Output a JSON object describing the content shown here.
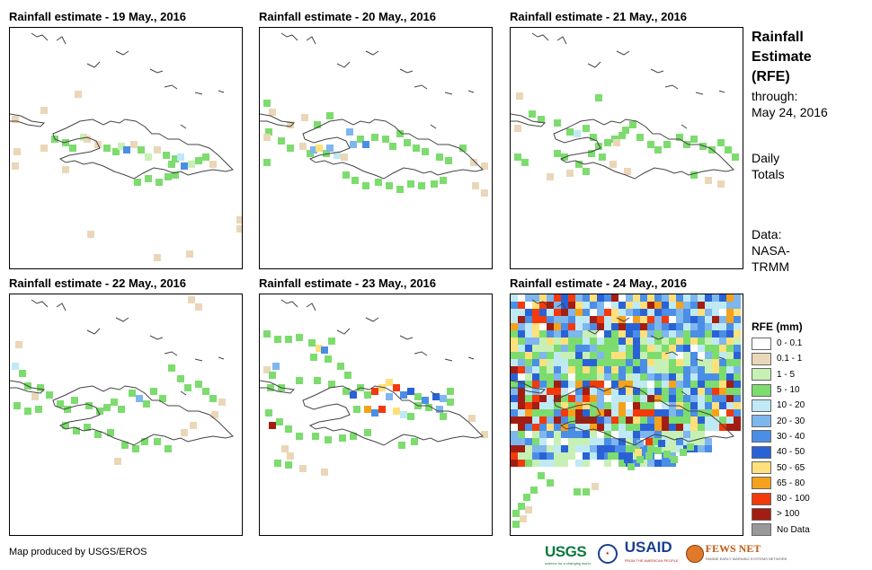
{
  "panels": [
    {
      "title": "Rainfall estimate - 19 May., 2016"
    },
    {
      "title": "Rainfall estimate - 20 May., 2016"
    },
    {
      "title": "Rainfall estimate - 21 May., 2016"
    },
    {
      "title": "Rainfall estimate - 22 May., 2016"
    },
    {
      "title": "Rainfall estimate - 23 May., 2016"
    },
    {
      "title": "Rainfall estimate - 24 May., 2016"
    }
  ],
  "side": {
    "title_lines": [
      "Rainfall",
      "Estimate",
      "(RFE)"
    ],
    "through_label": "through:",
    "through_date": "May 24, 2016",
    "totals_lines": [
      "Daily",
      "Totals"
    ],
    "data_lines": [
      "Data:",
      "NASA-",
      "TRMM"
    ]
  },
  "legend": {
    "title": "RFE (mm)",
    "items": [
      {
        "label": "0 - 0.1",
        "color": "#ffffff"
      },
      {
        "label": "0.1 - 1",
        "color": "#ead7b8"
      },
      {
        "label": "1 - 5",
        "color": "#c7f0b4"
      },
      {
        "label": "5 - 10",
        "color": "#7ddc6e"
      },
      {
        "label": "10 - 20",
        "color": "#bfe9f5"
      },
      {
        "label": "20 - 30",
        "color": "#7eb6ee"
      },
      {
        "label": "30 - 40",
        "color": "#4a8ee6"
      },
      {
        "label": "40 - 50",
        "color": "#2a62d6"
      },
      {
        "label": "50 - 65",
        "color": "#ffe07a"
      },
      {
        "label": "65 - 80",
        "color": "#f5a21b"
      },
      {
        "label": "80 - 100",
        "color": "#f23a0c"
      },
      {
        "label": "> 100",
        "color": "#a31d12"
      },
      {
        "label": "No Data",
        "color": "#999999"
      }
    ]
  },
  "credit": "Map produced by USGS/EROS",
  "logos": {
    "usgs": "USGS",
    "usgs_tagline": "science for a changing world",
    "usaid": "USAID",
    "usaid_tagline": "FROM THE AMERICAN PEOPLE",
    "fews": "FEWS NET",
    "fews_tagline": "FAMINE EARLY WARNING SYSTEMS NETWORK"
  }
}
